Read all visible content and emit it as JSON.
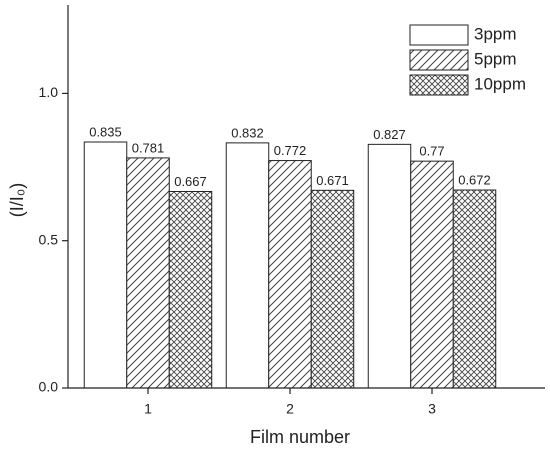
{
  "chart_data": {
    "type": "bar",
    "x_label": "Film number",
    "y_label": "(I/I₀)",
    "categories": [
      "1",
      "2",
      "3"
    ],
    "series": [
      {
        "name": "3ppm",
        "color": "#ffffff",
        "hatch": "none",
        "values": [
          0.835,
          0.832,
          0.827
        ]
      },
      {
        "name": "5ppm",
        "color": "#ffffff",
        "hatch": "diagonal",
        "values": [
          0.781,
          0.772,
          0.77
        ]
      },
      {
        "name": "10ppm",
        "color": "#ffffff",
        "hatch": "cross",
        "values": [
          0.667,
          0.671,
          0.672
        ]
      }
    ],
    "ylim": [
      0,
      1.3
    ],
    "yticks": [
      {
        "value": 0,
        "label": "0.0"
      },
      0.5,
      {
        "value": 1,
        "label": "1.0"
      }
    ],
    "legend": "upper right"
  }
}
